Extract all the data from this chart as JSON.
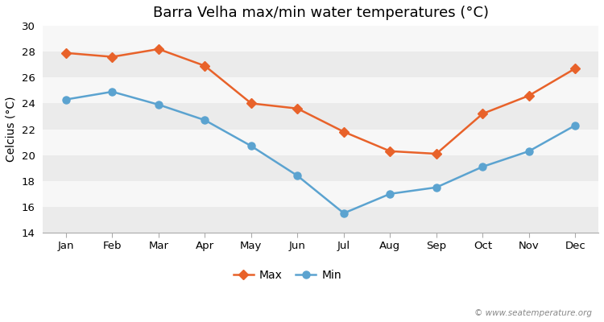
{
  "title": "Barra Velha max/min water temperatures (°C)",
  "ylabel": "Celcius (°C)",
  "months": [
    "Jan",
    "Feb",
    "Mar",
    "Apr",
    "May",
    "Jun",
    "Jul",
    "Aug",
    "Sep",
    "Oct",
    "Nov",
    "Dec"
  ],
  "max_values": [
    27.9,
    27.6,
    28.2,
    26.9,
    24.0,
    23.6,
    21.8,
    20.3,
    20.1,
    23.2,
    24.6,
    26.7
  ],
  "min_values": [
    24.3,
    24.9,
    23.9,
    22.7,
    20.7,
    18.4,
    15.5,
    17.0,
    17.5,
    19.1,
    20.3,
    22.3
  ],
  "max_color": "#e8622a",
  "min_color": "#5ba3d0",
  "background_color": "#ffffff",
  "plot_bg_color": "#f2f2f2",
  "band_color_light": "#ebebeb",
  "band_color_dark": "#f7f7f7",
  "ylim": [
    14,
    30
  ],
  "yticks": [
    14,
    16,
    18,
    20,
    22,
    24,
    26,
    28,
    30
  ],
  "legend_labels": [
    "Max",
    "Min"
  ],
  "watermark": "© www.seatemperature.org",
  "title_fontsize": 13,
  "label_fontsize": 10,
  "tick_fontsize": 9.5,
  "legend_fontsize": 10
}
